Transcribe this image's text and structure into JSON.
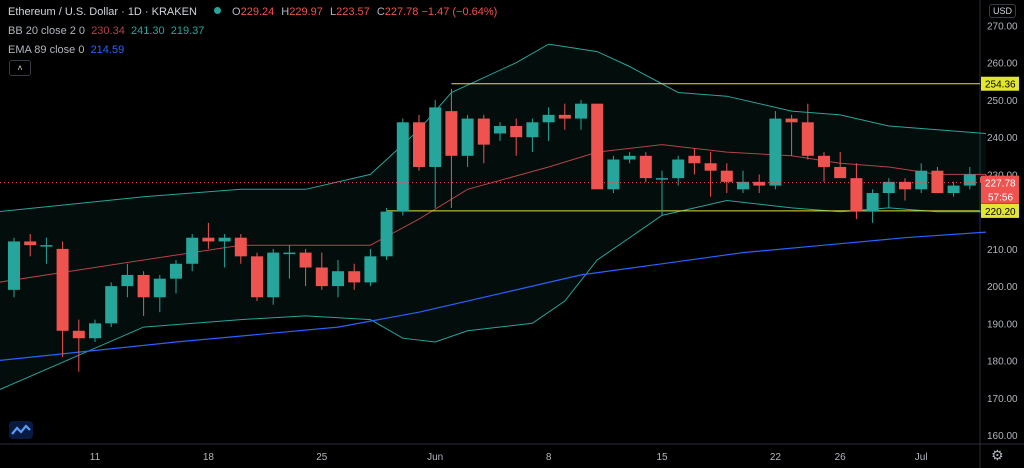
{
  "header": {
    "symbol": "Ethereum / U.S. Dollar · 1D · KRAKEN",
    "o_label": "O",
    "o": "229.24",
    "h_label": "H",
    "h": "229.97",
    "l_label": "L",
    "l": "223.57",
    "c_label": "C",
    "c": "227.78",
    "change": "−1.47 (−0.64%)"
  },
  "indicators": {
    "bb_label": "BB 20 close 2 0",
    "bb_basis": "230.34",
    "bb_upper": "241.30",
    "bb_lower": "219.37",
    "ema_label": "EMA 89 close 0",
    "ema_value": "214.59"
  },
  "currency": "USD",
  "colors": {
    "up": "#26a69a",
    "down": "#ef5350",
    "bb_band": "#26a69a",
    "bb_basis": "#b4424a",
    "ema": "#2962ff",
    "level": "#e2e62f",
    "axis_text": "#b2b5be"
  },
  "icons": {
    "collapse": "chevron-up-icon",
    "logo": "tradingview-logo",
    "settings": "gear-icon"
  },
  "chart_data": {
    "type": "candlestick",
    "ylim": [
      155,
      275
    ],
    "y_ticks": [
      160,
      170,
      180,
      190,
      200,
      210,
      220,
      230,
      240,
      250,
      260,
      270
    ],
    "x_ticks": [
      {
        "label": "11",
        "i": 5
      },
      {
        "label": "18",
        "i": 12
      },
      {
        "label": "25",
        "i": 19
      },
      {
        "label": "Jun",
        "i": 26
      },
      {
        "label": "8",
        "i": 33
      },
      {
        "label": "15",
        "i": 40
      },
      {
        "label": "22",
        "i": 47
      },
      {
        "label": "26",
        "i": 51
      },
      {
        "label": "Jul",
        "i": 56
      }
    ],
    "candles": [
      [
        199,
        213,
        197,
        212
      ],
      [
        212,
        214,
        208,
        211
      ],
      [
        211,
        213,
        206,
        211
      ],
      [
        210,
        212,
        181,
        188
      ],
      [
        188,
        191,
        177,
        186
      ],
      [
        186,
        191,
        185,
        190
      ],
      [
        190,
        201,
        189,
        200
      ],
      [
        200,
        206,
        197,
        203
      ],
      [
        203,
        204,
        192,
        197
      ],
      [
        197,
        203,
        193,
        202
      ],
      [
        202,
        207,
        198,
        206
      ],
      [
        206,
        214,
        204,
        213
      ],
      [
        213,
        217,
        210,
        212
      ],
      [
        212,
        214,
        205,
        213
      ],
      [
        213,
        214,
        206,
        208
      ],
      [
        208,
        209,
        196,
        197
      ],
      [
        197,
        210,
        195,
        209
      ],
      [
        209,
        211,
        202,
        209
      ],
      [
        209,
        210,
        200,
        205
      ],
      [
        205,
        209,
        199,
        200
      ],
      [
        200,
        207,
        197,
        204
      ],
      [
        204,
        206,
        199,
        201
      ],
      [
        201,
        210,
        200,
        208
      ],
      [
        208,
        221,
        207,
        220
      ],
      [
        220,
        245,
        219,
        244
      ],
      [
        244,
        246,
        231,
        232
      ],
      [
        232,
        250,
        221,
        248
      ],
      [
        247,
        253,
        221,
        235
      ],
      [
        235,
        246,
        232,
        245
      ],
      [
        245,
        246,
        233,
        238
      ],
      [
        241,
        244,
        239,
        243
      ],
      [
        243,
        245,
        235,
        240
      ],
      [
        240,
        245,
        236,
        244
      ],
      [
        244,
        248,
        239,
        246
      ],
      [
        246,
        249,
        242,
        245
      ],
      [
        245,
        250,
        242,
        249
      ],
      [
        249,
        249,
        227,
        226
      ],
      [
        226,
        235,
        225,
        234
      ],
      [
        234,
        236,
        233,
        235
      ],
      [
        235,
        236,
        228,
        229
      ],
      [
        229,
        231,
        219,
        229
      ],
      [
        229,
        235,
        227,
        234
      ],
      [
        235,
        237,
        230,
        233
      ],
      [
        233,
        236,
        224,
        231
      ],
      [
        231,
        233,
        225,
        228
      ],
      [
        226,
        231,
        225,
        228
      ],
      [
        228,
        230,
        225,
        227
      ],
      [
        227,
        247,
        226,
        245
      ],
      [
        245,
        246,
        235,
        244
      ],
      [
        244,
        249,
        234,
        235
      ],
      [
        235,
        236,
        228,
        232
      ],
      [
        232,
        236,
        230,
        229
      ],
      [
        229,
        233,
        218,
        220
      ],
      [
        220,
        226,
        217,
        225
      ],
      [
        225,
        229,
        221,
        228
      ],
      [
        228,
        229,
        223,
        226
      ],
      [
        226,
        233,
        225,
        231
      ],
      [
        231,
        232,
        226,
        225
      ],
      [
        225,
        228,
        224,
        227
      ],
      [
        227,
        232,
        226,
        230
      ],
      [
        229.24,
        229.97,
        223.57,
        227.78
      ]
    ],
    "bb_upper": [
      [
        -1,
        220
      ],
      [
        8,
        224
      ],
      [
        14,
        226
      ],
      [
        18,
        226
      ],
      [
        22,
        230
      ],
      [
        25,
        242
      ],
      [
        27,
        252
      ],
      [
        31,
        260
      ],
      [
        33,
        265
      ],
      [
        36,
        263
      ],
      [
        38,
        259
      ],
      [
        41,
        252
      ],
      [
        44,
        251
      ],
      [
        48,
        247
      ],
      [
        51,
        246
      ],
      [
        54,
        243
      ],
      [
        57,
        242
      ],
      [
        60,
        241
      ]
    ],
    "bb_basis": [
      [
        -1,
        201
      ],
      [
        8,
        207
      ],
      [
        14,
        211
      ],
      [
        18,
        211
      ],
      [
        22,
        211
      ],
      [
        25,
        218
      ],
      [
        28,
        226
      ],
      [
        33,
        232
      ],
      [
        36,
        236
      ],
      [
        40,
        238
      ],
      [
        44,
        236
      ],
      [
        48,
        235
      ],
      [
        51,
        233
      ],
      [
        54,
        232
      ],
      [
        57,
        230
      ],
      [
        60,
        230
      ]
    ],
    "bb_lower": [
      [
        -1,
        172
      ],
      [
        8,
        189
      ],
      [
        14,
        191
      ],
      [
        18,
        192
      ],
      [
        22,
        191
      ],
      [
        24,
        186
      ],
      [
        26,
        185
      ],
      [
        28,
        188
      ],
      [
        32,
        190
      ],
      [
        34,
        196
      ],
      [
        36,
        207
      ],
      [
        40,
        219
      ],
      [
        44,
        223
      ],
      [
        48,
        221
      ],
      [
        51,
        220
      ],
      [
        54,
        221
      ],
      [
        57,
        220
      ],
      [
        60,
        220
      ]
    ],
    "ema89": [
      [
        -1,
        180
      ],
      [
        10,
        185
      ],
      [
        20,
        189
      ],
      [
        25,
        193
      ],
      [
        30,
        198
      ],
      [
        35,
        203
      ],
      [
        40,
        206
      ],
      [
        45,
        209
      ],
      [
        50,
        211
      ],
      [
        55,
        213
      ],
      [
        60,
        214.5
      ]
    ],
    "levels": [
      {
        "value": 254.36,
        "label": "254.36",
        "from": 27
      },
      {
        "value": 220.2,
        "label": "220.20",
        "from": 23
      }
    ],
    "last_price": {
      "value": 227.78,
      "label": "227.78",
      "countdown": "57:56"
    }
  }
}
